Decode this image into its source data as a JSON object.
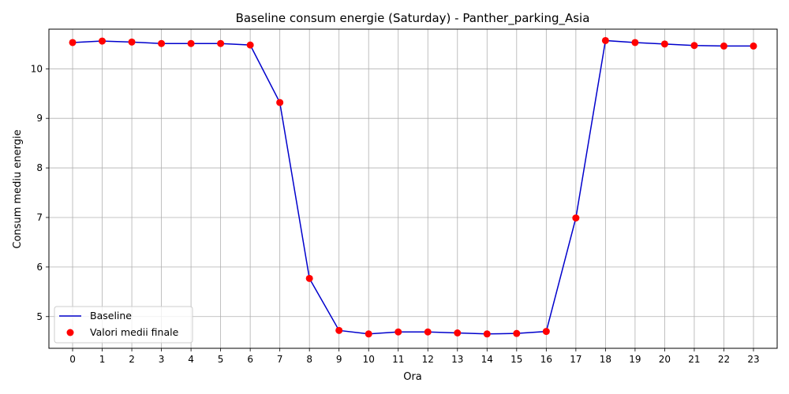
{
  "chart_data": {
    "type": "line",
    "title": "Baseline consum energie (Saturday) - Panther_parking_Asia",
    "xlabel": "Ora",
    "ylabel": "Consum mediu energie",
    "x": [
      0,
      1,
      2,
      3,
      4,
      5,
      6,
      7,
      8,
      9,
      10,
      11,
      12,
      13,
      14,
      15,
      16,
      17,
      18,
      19,
      20,
      21,
      22,
      23
    ],
    "xlim": [
      -0.8,
      23.8
    ],
    "ylim": [
      4.36,
      10.8
    ],
    "yticks": [
      5,
      6,
      7,
      8,
      9,
      10
    ],
    "grid": true,
    "legend_position": "lower-left",
    "series": [
      {
        "name": "Baseline",
        "kind": "line",
        "color": "#0000cc",
        "values": [
          10.53,
          10.56,
          10.54,
          10.51,
          10.51,
          10.51,
          10.48,
          9.32,
          5.77,
          4.72,
          4.65,
          4.69,
          4.69,
          4.67,
          4.65,
          4.66,
          4.7,
          6.99,
          10.57,
          10.53,
          10.5,
          10.47,
          10.46,
          10.46
        ]
      },
      {
        "name": "Valori medii finale",
        "kind": "scatter",
        "color": "#ff0000",
        "values": [
          10.53,
          10.56,
          10.54,
          10.51,
          10.51,
          10.51,
          10.48,
          9.32,
          5.77,
          4.72,
          4.65,
          4.69,
          4.69,
          4.67,
          4.65,
          4.66,
          4.7,
          6.99,
          10.57,
          10.53,
          10.5,
          10.47,
          10.46,
          10.46
        ]
      }
    ]
  }
}
